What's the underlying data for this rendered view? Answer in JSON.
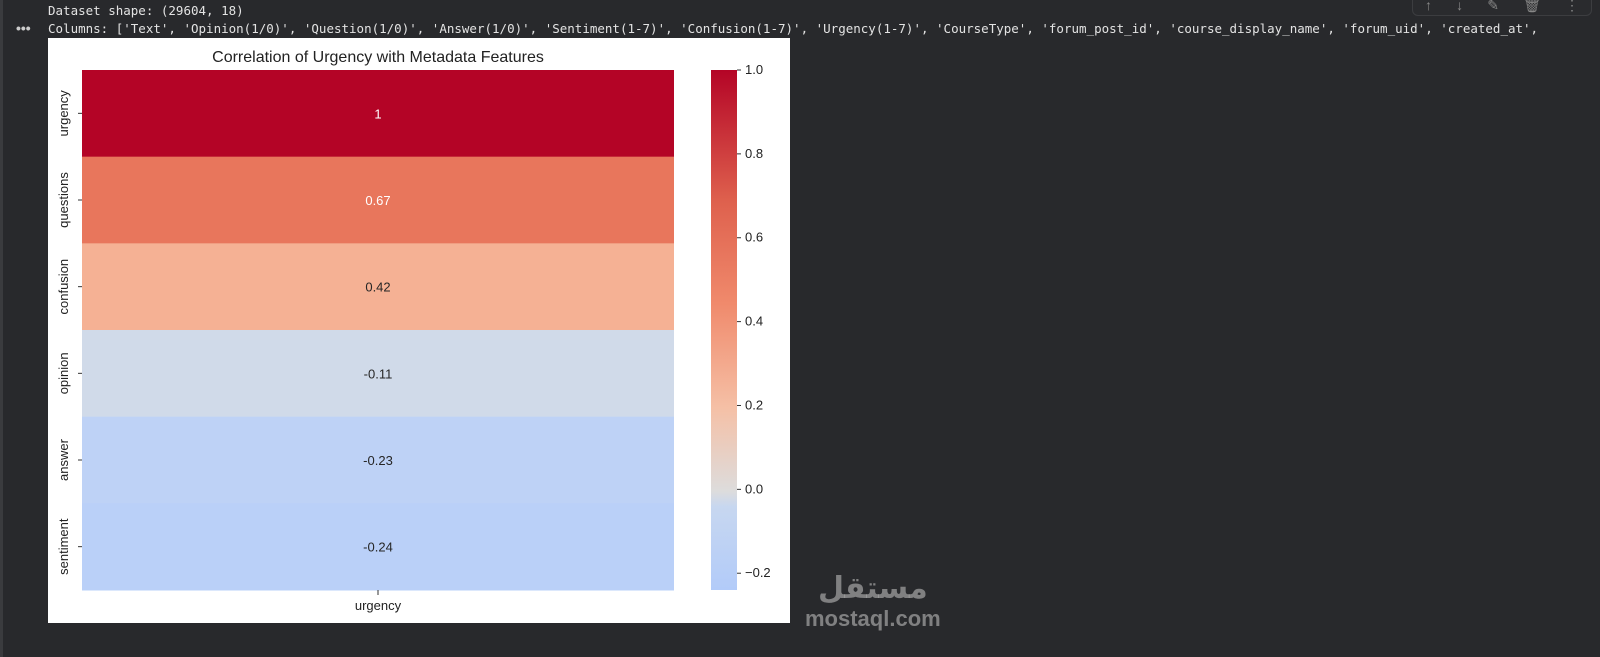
{
  "output": {
    "line1": "Dataset shape: (29604, 18)",
    "line2": "Columns: ['Text', 'Opinion(1/0)', 'Question(1/0)', 'Answer(1/0)', 'Sentiment(1-7)', 'Confusion(1-7)', 'Urgency(1-7)', 'CourseType', 'forum_post_id', 'course_display_name', 'forum_uid', 'created_at',",
    "more": "•••"
  },
  "toolbar": {
    "icons": [
      "arrow-up-icon",
      "arrow-down-icon",
      "edit-icon",
      "delete-icon",
      "more-icon"
    ],
    "glyphs": [
      "↑",
      "↓",
      "✎",
      "🗑",
      "⋮"
    ]
  },
  "watermark": {
    "arabic": "مستقل",
    "latin": "mostaql.com"
  },
  "chart_data": {
    "type": "heatmap",
    "title": "Correlation of Urgency with Metadata Features",
    "rows": [
      "urgency",
      "questions",
      "confusion",
      "opinion",
      "answer",
      "sentiment"
    ],
    "columns": [
      "urgency"
    ],
    "values": [
      1,
      0.67,
      0.42,
      -0.11,
      -0.23,
      -0.24
    ],
    "labels": [
      "1",
      "0.67",
      "0.42",
      "-0.11",
      "-0.23",
      "-0.24"
    ],
    "colormap": "coolwarm",
    "cell_colors": [
      "#b40426",
      "#e8765c",
      "#f5b194",
      "#d0dae9",
      "#bed2f6",
      "#bad0f8"
    ],
    "colorbar": {
      "vmin": -0.24,
      "vmax": 1.0,
      "ticks": [
        1.0,
        0.8,
        0.6,
        0.4,
        0.2,
        0.0,
        -0.2
      ],
      "tick_labels": [
        "1.0",
        "0.8",
        "0.6",
        "0.4",
        "0.2",
        "0.0",
        "−0.2"
      ]
    }
  }
}
